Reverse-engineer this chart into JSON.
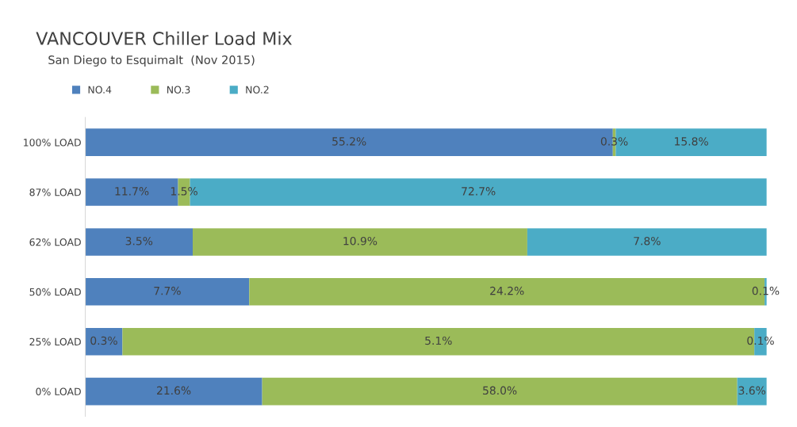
{
  "chart_data": [
    {
      "type": "bar",
      "title": "VANCOUVER Chiller Load Mix",
      "subtitle": "San Diego to Esquimalt  (Nov 2015)",
      "categories": [
        "100% LOAD"
      ],
      "orientation": "horizontal",
      "stacked": true,
      "legend": "top left",
      "grid": false,
      "series": [
        {
          "name": "NO.4",
          "color": "#4f81bd",
          "values": [
            55.2
          ],
          "value_labels": [
            "55.2%"
          ]
        },
        {
          "name": "NO.3",
          "color": "#9bbb59",
          "values": [
            0.3
          ],
          "value_labels": [
            "0.3%"
          ]
        },
        {
          "name": "NO.2",
          "color": "#4bacc6",
          "values": [
            15.8
          ],
          "value_labels": [
            "15.8%"
          ]
        }
      ]
    },
    {
      "type": "bar",
      "categories": [
        "87% LOAD"
      ],
      "orientation": "horizontal",
      "stacked": true,
      "series": [
        {
          "color": "#4f81bd",
          "values": [
            11.7
          ],
          "value_labels": [
            "11.7%"
          ]
        },
        {
          "color": "#9bbb59",
          "values": [
            1.5
          ],
          "value_labels": [
            "1.5%"
          ]
        },
        {
          "color": "#4bacc6",
          "values": [
            72.7
          ],
          "value_labels": [
            "72.7%"
          ]
        }
      ]
    },
    {
      "type": "bar",
      "categories": [
        "62% LOAD"
      ],
      "orientation": "horizontal",
      "stacked": true,
      "series": [
        {
          "color": "#4f81bd",
          "values": [
            3.5
          ],
          "value_labels": [
            "3.5%"
          ]
        },
        {
          "color": "#9bbb59",
          "values": [
            10.9
          ],
          "value_labels": [
            "10.9%"
          ]
        },
        {
          "color": "#4bacc6",
          "values": [
            7.8
          ],
          "value_labels": [
            "7.8%"
          ]
        }
      ]
    },
    {
      "type": "bar",
      "categories": [
        "50% LOAD"
      ],
      "orientation": "horizontal",
      "stacked": true,
      "series": [
        {
          "color": "#4f81bd",
          "values": [
            7.7
          ],
          "value_labels": [
            "7.7%"
          ]
        },
        {
          "color": "#9bbb59",
          "values": [
            24.2
          ],
          "value_labels": [
            "24.2%"
          ]
        },
        {
          "color": "#4bacc6",
          "values": [
            0.1
          ],
          "value_labels": [
            "0.1%"
          ]
        }
      ]
    },
    {
      "type": "bar",
      "categories": [
        "25% LOAD"
      ],
      "orientation": "horizontal",
      "stacked": true,
      "series": [
        {
          "color": "#4f81bd",
          "values": [
            0.3
          ],
          "value_labels": [
            "0.3%"
          ]
        },
        {
          "color": "#9bbb59",
          "values": [
            5.1
          ],
          "value_labels": [
            "5.1%"
          ]
        },
        {
          "color": "#4bacc6",
          "values": [
            0.1
          ],
          "value_labels": [
            "0.1%"
          ]
        }
      ]
    },
    {
      "type": "bar",
      "categories": [
        "0% LOAD"
      ],
      "orientation": "horizontal",
      "stacked": true,
      "series": [
        {
          "color": "#4f81bd",
          "values": [
            21.6
          ],
          "value_labels": [
            "21.6%"
          ]
        },
        {
          "color": "#9bbb59",
          "values": [
            58.0
          ],
          "value_labels": [
            "58.0%"
          ]
        },
        {
          "color": "#4bacc6",
          "values": [
            3.6
          ],
          "value_labels": [
            "3.6%"
          ]
        }
      ]
    }
  ]
}
